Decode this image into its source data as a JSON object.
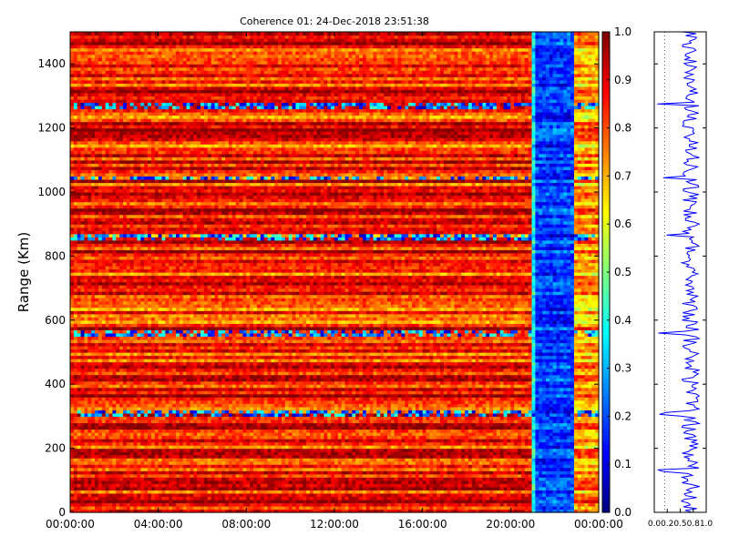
{
  "chart_data": [
    {
      "type": "heatmap",
      "title": "Coherence 01: 24-Dec-2018 23:51:38",
      "xlabel": "",
      "ylabel": "Range (Km)",
      "x_tick_labels": [
        "00:00:00",
        "04:00:00",
        "08:00:00",
        "12:00:00",
        "16:00:00",
        "20:00:00",
        "00:00:00"
      ],
      "x_range_hours": [
        0,
        24
      ],
      "y_ticks": [
        0,
        200,
        400,
        600,
        800,
        1000,
        1200,
        1400
      ],
      "ylim": [
        0,
        1500
      ],
      "colormap": "jet",
      "colorbar": {
        "ticks": [
          "0.0",
          "0.1",
          "0.2",
          "0.3",
          "0.4",
          "0.5",
          "0.6",
          "0.7",
          "0.8",
          "0.9",
          "1.0"
        ],
        "range": [
          0,
          1
        ]
      },
      "value_by_time_segment": [
        {
          "from_hour": 0,
          "to_hour": 20.9,
          "typical_coherence": 0.85
        },
        {
          "from_hour": 20.9,
          "to_hour": 21.2,
          "typical_coherence": 0.38
        },
        {
          "from_hour": 21.2,
          "to_hour": 22.8,
          "typical_coherence": 0.18
        },
        {
          "from_hour": 22.8,
          "to_hour": 22.95,
          "typical_coherence": 0.05
        },
        {
          "from_hour": 22.95,
          "to_hour": 24,
          "typical_coherence": 0.72
        }
      ],
      "low_coherence_range_bands_km": [
        1270,
        1045,
        860,
        560,
        310
      ],
      "grid": false
    },
    {
      "type": "line",
      "title": "",
      "xlabel": "",
      "ylabel": "",
      "x_tick_labels": [
        "0.0",
        "0.2",
        "0.5",
        "0.8",
        "1.0"
      ],
      "xlim": [
        0,
        1
      ],
      "ylim": [
        0,
        1500
      ],
      "series": [
        {
          "color": "#0000ff",
          "mean_coherence": 0.7,
          "notable_dips_km": [
            1275,
            1045,
            865,
            560,
            310,
            130
          ]
        }
      ]
    }
  ]
}
